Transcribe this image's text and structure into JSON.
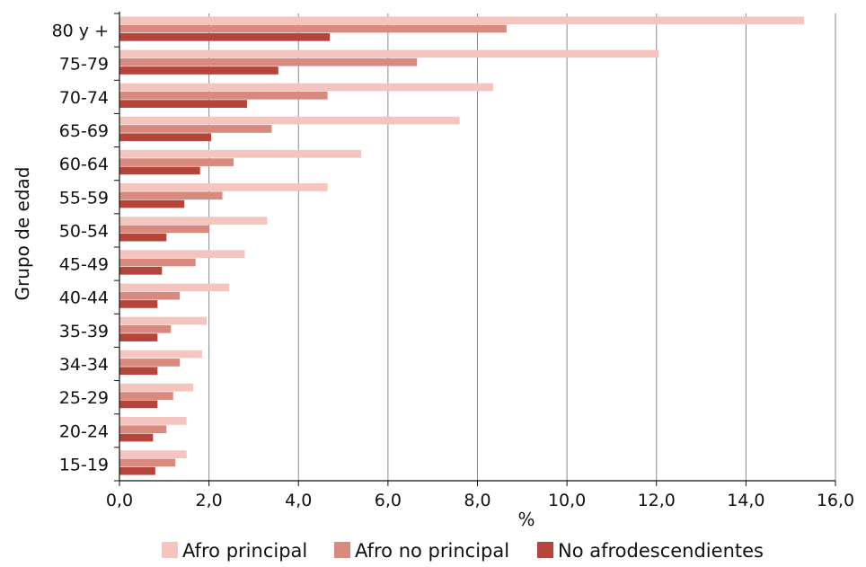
{
  "chart_data": {
    "type": "bar",
    "orientation": "horizontal",
    "categories": [
      "80 y +",
      "75-79",
      "70-74",
      "65-69",
      "60-64",
      "55-59",
      "50-54",
      "45-49",
      "40-44",
      "35-39",
      "34-34",
      "25-29",
      "20-24",
      "15-19"
    ],
    "series": [
      {
        "name": "Afro principal",
        "color": "#f4c4be",
        "values": [
          15.3,
          12.05,
          8.35,
          7.6,
          5.4,
          4.65,
          3.3,
          2.8,
          2.45,
          1.95,
          1.85,
          1.65,
          1.5,
          1.5
        ]
      },
      {
        "name": "Afro no principal",
        "color": "#d98a7f",
        "values": [
          8.65,
          6.65,
          4.65,
          3.4,
          2.55,
          2.3,
          2.0,
          1.7,
          1.35,
          1.15,
          1.35,
          1.2,
          1.05,
          1.25
        ]
      },
      {
        "name": "No afrodescendientes",
        "color": "#b5453a",
        "values": [
          4.7,
          3.55,
          2.85,
          2.05,
          1.8,
          1.45,
          1.05,
          0.95,
          0.85,
          0.85,
          0.85,
          0.85,
          0.75,
          0.8
        ]
      }
    ],
    "xlabel": "%",
    "ylabel": "Grupo de edad",
    "xlim": [
      0,
      16
    ],
    "xticks": [
      "0,0",
      "2,0",
      "4,0",
      "6,0",
      "8,0",
      "10,0",
      "12,0",
      "14,0",
      "16,0"
    ],
    "grid": "vertical",
    "legend": "bottom"
  }
}
